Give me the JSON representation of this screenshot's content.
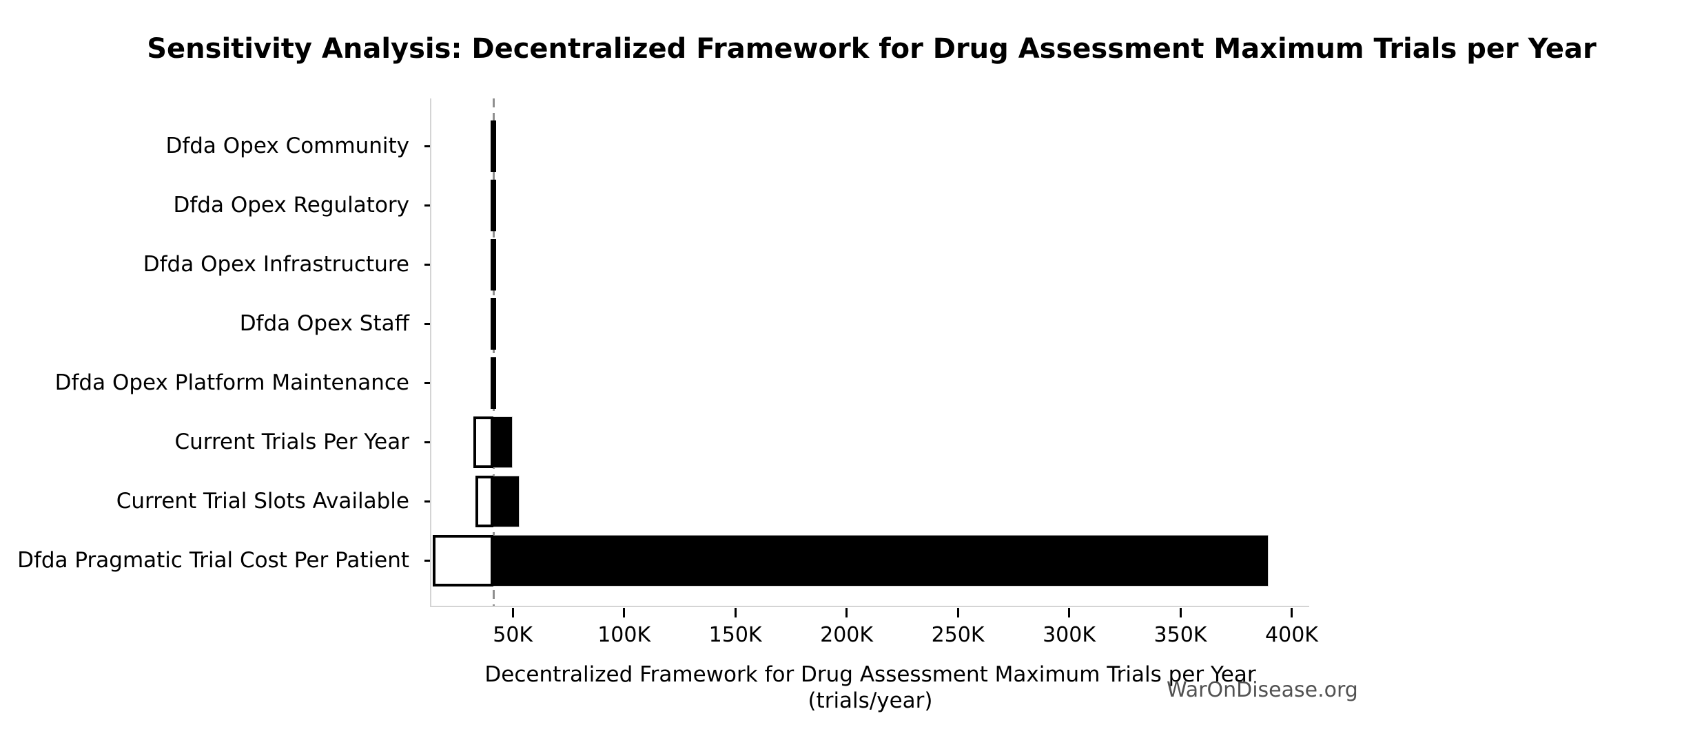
{
  "watermark": {
    "text": "WarOnDisease.org",
    "color": "#525252"
  },
  "chart_data": {
    "type": "bar",
    "subtype": "tornado-sensitivity",
    "orientation": "horizontal",
    "title": "Sensitivity Analysis: Decentralized Framework for Drug Assessment Maximum Trials per Year",
    "xlabel": "Decentralized Framework for Drug Assessment Maximum Trials per Year (trials/year)",
    "ylabel": "",
    "baseline": 41300,
    "xlim": [
      13400,
      407900
    ],
    "grid": false,
    "legend": "none",
    "x_ticks": [
      {
        "value": 50000,
        "label": "50K"
      },
      {
        "value": 100000,
        "label": "100K"
      },
      {
        "value": 150000,
        "label": "150K"
      },
      {
        "value": 200000,
        "label": "200K"
      },
      {
        "value": 250000,
        "label": "250K"
      },
      {
        "value": 300000,
        "label": "300K"
      },
      {
        "value": 350000,
        "label": "350K"
      },
      {
        "value": 400000,
        "label": "400K"
      }
    ],
    "rows": [
      {
        "label": "Dfda Opex Community",
        "low": 40100,
        "high": 41900
      },
      {
        "label": "Dfda Opex Regulatory",
        "low": 40100,
        "high": 41900
      },
      {
        "label": "Dfda Opex Infrastructure",
        "low": 40100,
        "high": 41900
      },
      {
        "label": "Dfda Opex Staff",
        "low": 40100,
        "high": 41900
      },
      {
        "label": "Dfda Opex Platform Maintenance",
        "low": 40100,
        "high": 41900
      },
      {
        "label": "Current Trials Per Year",
        "low": 32200,
        "high": 49900
      },
      {
        "label": "Current Trial Slots Available",
        "low": 33100,
        "high": 53100
      },
      {
        "label": "Dfda Pragmatic Trial Cost Per Patient",
        "low": 13900,
        "high": 389500
      }
    ],
    "colors": {
      "bar_high_fill": "#000000",
      "bar_high_edge": "#d2d2d2",
      "bar_low_fill": "#ffffff",
      "bar_low_edge": "#000000",
      "baseline_line": "#8f8f8f",
      "spine": "#d4d4d4",
      "text": "#000000",
      "background": "#ffffff"
    }
  }
}
